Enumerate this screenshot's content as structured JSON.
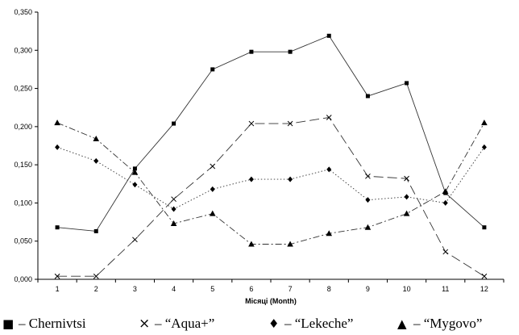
{
  "chart_data": {
    "type": "line",
    "xlabel": "Місяці (Month)",
    "ylabel": "",
    "ylim": [
      0,
      0.35
    ],
    "yticks": [
      "0,000",
      "0,050",
      "0,100",
      "0,150",
      "0,200",
      "0,250",
      "0,300",
      "0,350"
    ],
    "x": [
      1,
      2,
      3,
      4,
      5,
      6,
      7,
      8,
      9,
      10,
      11,
      12
    ],
    "grid": false,
    "legend_position": "bottom",
    "series": [
      {
        "name": "– Chernivtsi",
        "symbol": "■",
        "marker": "square",
        "line": "solid",
        "values": [
          0.068,
          0.063,
          0.145,
          0.204,
          0.275,
          0.298,
          0.298,
          0.319,
          0.24,
          0.257,
          0.113,
          0.068
        ]
      },
      {
        "name": "– “Aqua+”",
        "symbol": "×",
        "marker": "x",
        "line": "longdash",
        "values": [
          0.004,
          0.004,
          0.052,
          0.105,
          0.148,
          0.204,
          0.204,
          0.212,
          0.135,
          0.132,
          0.036,
          0.004
        ]
      },
      {
        "name": "– “Lekeche”",
        "symbol": "♦",
        "marker": "diamond",
        "line": "dotted",
        "values": [
          0.173,
          0.155,
          0.124,
          0.092,
          0.118,
          0.131,
          0.131,
          0.144,
          0.104,
          0.108,
          0.1,
          0.173
        ]
      },
      {
        "name": "– “Mygovo”",
        "symbol": "▲",
        "marker": "triangle",
        "line": "dashdot",
        "values": [
          0.205,
          0.184,
          0.14,
          0.073,
          0.086,
          0.046,
          0.046,
          0.06,
          0.068,
          0.086,
          0.115,
          0.205
        ]
      }
    ]
  }
}
